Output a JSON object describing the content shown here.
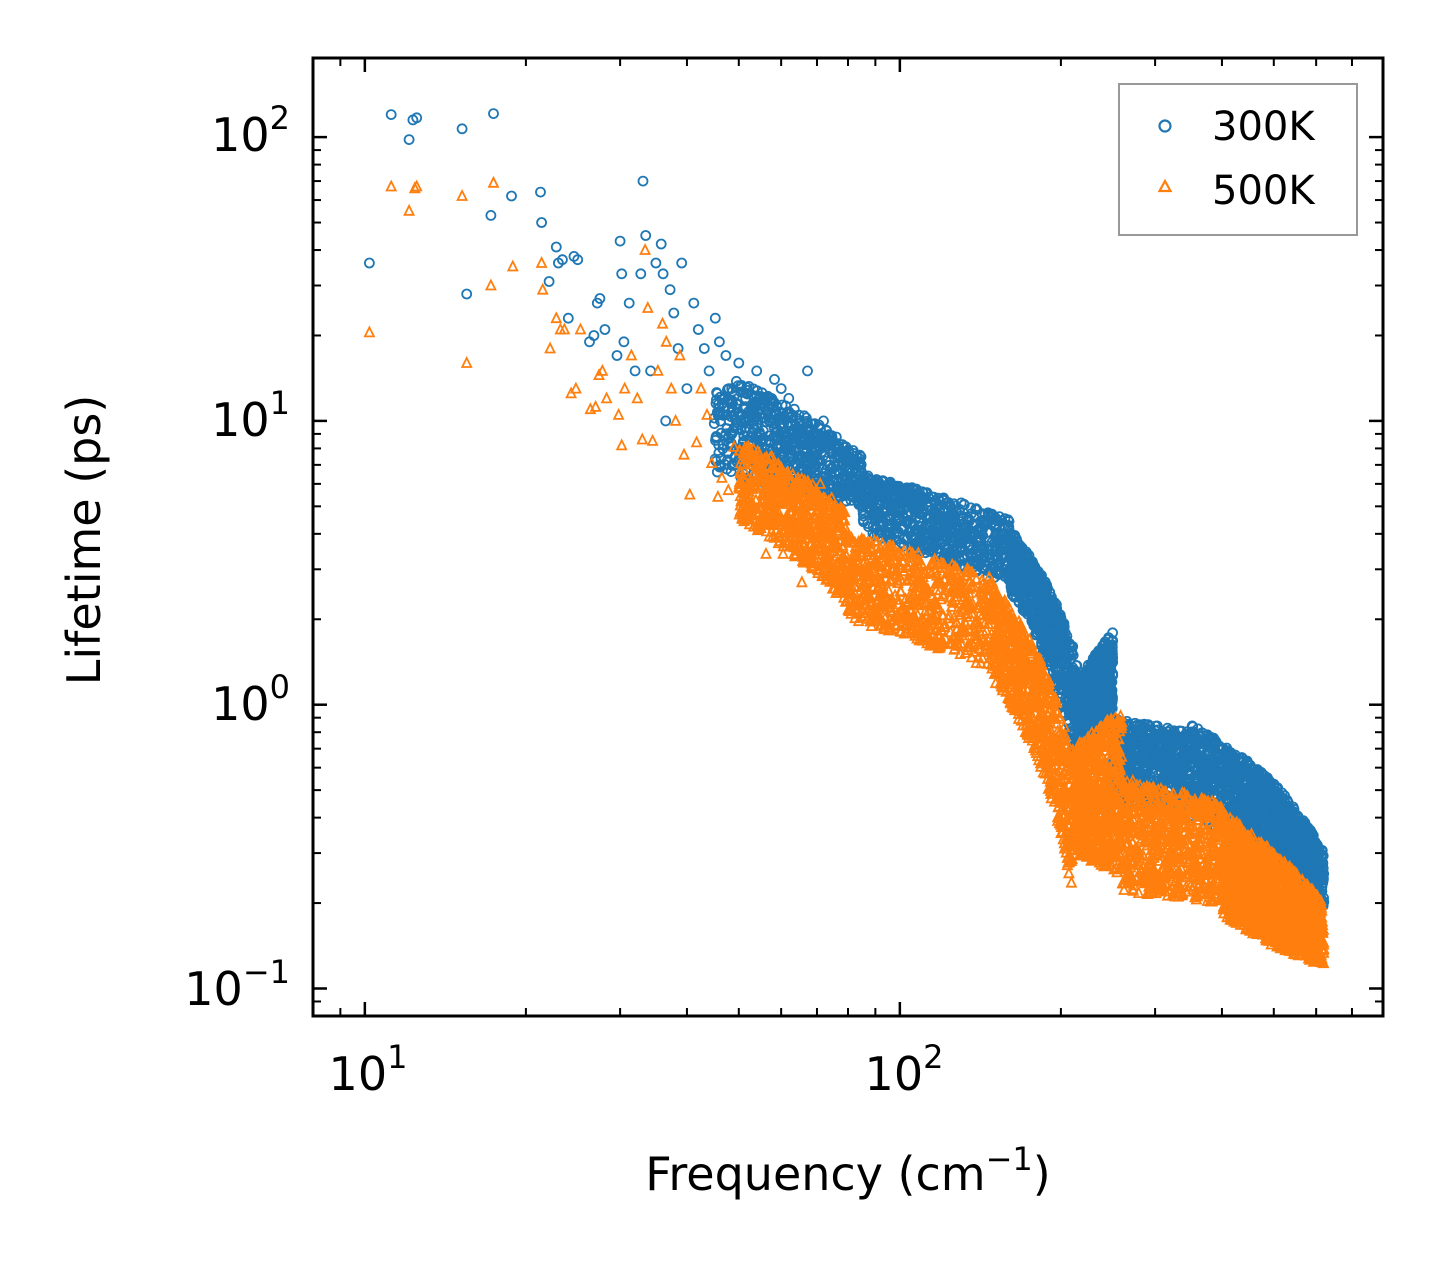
{
  "chart_data": {
    "type": "scatter",
    "title": "",
    "xlabel": "Frequency (cm⁻¹)",
    "xlabel_parts": {
      "main": "Frequency (cm",
      "sup": "−1",
      "close": ")"
    },
    "ylabel": "Lifetime (ps)",
    "xscale": "log",
    "yscale": "log",
    "xlim": [
      8.0,
      800
    ],
    "ylim": [
      0.08,
      190
    ],
    "x_ticks": [
      {
        "value": 10,
        "base": "10",
        "exp": "1"
      },
      {
        "value": 100,
        "base": "10",
        "exp": "2"
      }
    ],
    "y_ticks": [
      {
        "value": 0.1,
        "base": "10",
        "exp": "−1"
      },
      {
        "value": 1,
        "base": "10",
        "exp": "0"
      },
      {
        "value": 10,
        "base": "10",
        "exp": "1"
      },
      {
        "value": 100,
        "base": "10",
        "exp": "2"
      }
    ],
    "legend_position": "top-right",
    "series": [
      {
        "name": "300K",
        "marker": "circle",
        "color": "#1f77b4",
        "x": [
          10.2,
          11.2,
          12.1,
          12.3,
          12.5,
          15.2,
          15.5,
          17.2,
          17.4,
          18.8,
          21.3,
          21.4,
          22.1,
          22.8,
          23.0,
          23.4,
          24.0,
          24.6,
          25.0,
          26.3,
          26.8,
          27.2,
          27.5,
          28.1,
          29.6,
          30.0,
          30.2,
          30.5,
          31.2,
          32.0,
          32.8,
          33.1,
          33.5,
          34.2,
          35.0,
          35.8,
          36.1,
          36.5,
          37.2,
          37.8,
          38.5,
          39.1,
          40.0,
          41.2,
          42.0,
          43.1,
          44.0,
          45.2,
          46.0,
          47.3,
          48.5,
          50.0,
          51.5,
          52.8,
          54.0,
          55.6,
          57.0,
          58.3,
          60.0,
          62.0,
          63.5,
          65.0,
          67.2,
          69.0,
          70.5,
          72.0,
          75.0,
          78.0
        ],
        "y": [
          36,
          120,
          98,
          115,
          117,
          107,
          28,
          53,
          121,
          62,
          64,
          50,
          31,
          41,
          36,
          37,
          23,
          38,
          37,
          19,
          20,
          26,
          27,
          21,
          17,
          43,
          33,
          19,
          26,
          15,
          33,
          70,
          45,
          15,
          36,
          42,
          33,
          10,
          29,
          24,
          18,
          36,
          13,
          26,
          21,
          18,
          15,
          23,
          19,
          17,
          13,
          16,
          12,
          11,
          15,
          12,
          10,
          14,
          13,
          12,
          11,
          10,
          15,
          8.8,
          9.5,
          10,
          8.5,
          7.6
        ],
        "bands": [
          {
            "x0": 45,
            "x1": 85,
            "y_low0": 6.5,
            "y_low1": 5.0,
            "y_high0": 15,
            "y_high1": 7.5
          },
          {
            "x0": 85,
            "x1": 160,
            "y_low0": 4.0,
            "y_low1": 2.6,
            "y_high0": 6.5,
            "y_high1": 4.5
          },
          {
            "x0": 160,
            "x1": 215,
            "y_low0": 2.5,
            "y_low1": 0.55,
            "y_high0": 4.2,
            "y_high1": 1.4
          },
          {
            "x0": 215,
            "x1": 250,
            "y_low0": 0.55,
            "y_low1": 0.9,
            "y_high0": 1.2,
            "y_high1": 1.8
          },
          {
            "x0": 250,
            "x1": 350,
            "y_low0": 0.45,
            "y_low1": 0.4,
            "y_high0": 0.9,
            "y_high1": 0.8
          },
          {
            "x0": 350,
            "x1": 490,
            "y_low0": 0.4,
            "y_low1": 0.3,
            "y_high0": 0.85,
            "y_high1": 0.55
          },
          {
            "x0": 490,
            "x1": 620,
            "y_low0": 0.28,
            "y_low1": 0.19,
            "y_high0": 0.55,
            "y_high1": 0.3
          }
        ]
      },
      {
        "name": "500K",
        "marker": "triangle",
        "color": "#ff7f0e",
        "x": [
          10.2,
          11.2,
          12.1,
          12.4,
          12.5,
          15.2,
          15.5,
          17.2,
          17.4,
          18.9,
          21.4,
          21.5,
          22.2,
          22.8,
          23.2,
          23.6,
          24.3,
          24.8,
          25.3,
          26.4,
          27.0,
          27.4,
          27.8,
          28.3,
          29.8,
          30.2,
          30.6,
          31.5,
          32.3,
          33.0,
          33.4,
          33.8,
          34.5,
          35.3,
          36.0,
          36.6,
          37.4,
          38.1,
          38.8,
          39.5,
          40.5,
          41.7,
          42.5,
          43.6,
          44.5,
          45.7,
          46.5,
          47.8,
          49.0,
          50.5,
          52.0,
          53.3,
          54.6,
          56.2,
          57.6,
          58.9,
          60.5,
          62.5,
          64.0,
          65.6,
          67.8,
          69.6,
          71.0,
          72.6
        ],
        "y": [
          20.5,
          67,
          55,
          66,
          67,
          62,
          16,
          30,
          69,
          35,
          36,
          29,
          18,
          23,
          21,
          21,
          12.5,
          13,
          21,
          11,
          11.2,
          14.5,
          15,
          12,
          10.5,
          8.2,
          13,
          17,
          12,
          8.6,
          40,
          25,
          8.5,
          15,
          22,
          19,
          13,
          10,
          17,
          7.6,
          5.5,
          8.4,
          13,
          10.5,
          7.1,
          5.4,
          6.3,
          5.7,
          8.1,
          6.0,
          5.0,
          4.9,
          7.3,
          3.4,
          7.5,
          6.2,
          3.4,
          4.8,
          3.9,
          2.7,
          5.5,
          5.2,
          6.0,
          4.2
        ],
        "bands": [
          {
            "x0": 50,
            "x1": 80,
            "y_low0": 4.5,
            "y_low1": 2.2,
            "y_high0": 8.5,
            "y_high1": 4.8
          },
          {
            "x0": 80,
            "x1": 150,
            "y_low0": 2.0,
            "y_low1": 1.3,
            "y_high0": 4.0,
            "y_high1": 2.8
          },
          {
            "x0": 150,
            "x1": 210,
            "y_low0": 1.2,
            "y_low1": 0.2,
            "y_high0": 2.6,
            "y_high1": 0.65
          },
          {
            "x0": 210,
            "x1": 260,
            "y_low0": 0.3,
            "y_low1": 0.25,
            "y_high0": 0.7,
            "y_high1": 0.95
          },
          {
            "x0": 260,
            "x1": 400,
            "y_low0": 0.22,
            "y_low1": 0.2,
            "y_high0": 0.55,
            "y_high1": 0.45
          },
          {
            "x0": 400,
            "x1": 500,
            "y_low0": 0.18,
            "y_low1": 0.14,
            "y_high0": 0.42,
            "y_high1": 0.3
          },
          {
            "x0": 500,
            "x1": 620,
            "y_low0": 0.14,
            "y_low1": 0.12,
            "y_high0": 0.3,
            "y_high1": 0.2
          }
        ]
      }
    ]
  }
}
